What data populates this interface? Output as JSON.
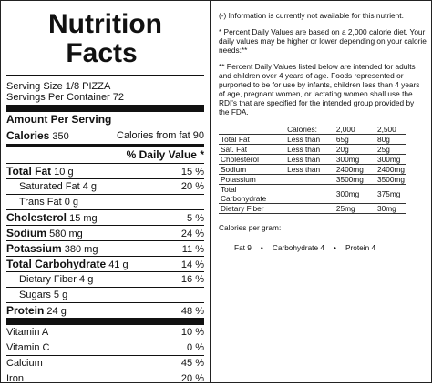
{
  "label": {
    "title_line1": "Nutrition",
    "title_line2": "Facts",
    "serving_size": "Serving Size 1/8 PIZZA",
    "servings_per_container": "Servings Per Container 72",
    "amount_per_serving": "Amount Per Serving",
    "calories_label": "Calories",
    "calories_value": "350",
    "calories_fat": "Calories from fat 90",
    "daily_value_header": "% Daily Value *",
    "nutrients": [
      {
        "name": "Total Fat",
        "amount": "10 g",
        "dv": "15 %"
      },
      {
        "name": "Saturated Fat",
        "amount": "4 g",
        "dv": "20 %"
      },
      {
        "name": "Trans Fat",
        "amount": "0 g",
        "dv": ""
      },
      {
        "name": "Cholesterol",
        "amount": "15 mg",
        "dv": "5 %"
      },
      {
        "name": "Sodium",
        "amount": "580 mg",
        "dv": "24 %"
      },
      {
        "name": "Potassium",
        "amount": "380 mg",
        "dv": "11 %"
      },
      {
        "name": "Total Carbohydrate",
        "amount": "41 g",
        "dv": "14 %"
      },
      {
        "name": "Dietary Fiber",
        "amount": "4 g",
        "dv": "16 %"
      },
      {
        "name": "Sugars",
        "amount": "5 g",
        "dv": ""
      },
      {
        "name": "Protein",
        "amount": "24 g",
        "dv": "48 %"
      }
    ],
    "vitamins": [
      {
        "name": "Vitamin A",
        "dv": "10 %"
      },
      {
        "name": "Vitamin C",
        "dv": "0 %"
      },
      {
        "name": "Calcium",
        "dv": "45 %"
      },
      {
        "name": "Iron",
        "dv": "20 %"
      }
    ]
  },
  "notes": {
    "unavailable": "(-) Information is currently not available for this nutrient.",
    "footnote1": "* Percent Daily Values are based on a 2,000 calorie diet. Your daily values may be higher or lower depending on your calorie needs:**",
    "footnote2": "** Percent Daily Values listed below are intended for adults and children over 4 years of age. Foods represented or purported to be for use by infants, children less than 4 years of age, pregnant women, or lactating women shall use the RDI's that are specified for the intended group provided by the FDA.",
    "table_header": [
      "",
      "Calories:",
      "2,000",
      "2,500"
    ],
    "table_rows": [
      [
        "Total Fat",
        "Less than",
        "65g",
        "80g"
      ],
      [
        "Sat. Fat",
        "Less than",
        "20g",
        "25g"
      ],
      [
        "Cholesterol",
        "Less than",
        "300mg",
        "300mg"
      ],
      [
        "Sodium",
        "Less than",
        "2400mg",
        "2400mg"
      ],
      [
        "Potassium",
        "",
        "3500mg",
        "3500mg"
      ],
      [
        "Total Carbohydrate",
        "",
        "300mg",
        "375mg"
      ],
      [
        "Dietary Fiber",
        "",
        "25mg",
        "30mg"
      ]
    ],
    "calories_per_gram": "Calories per gram:",
    "cpg_fat": "Fat 9",
    "cpg_carb": "Carbohydrate 4",
    "cpg_protein": "Protein 4",
    "bullet": "•"
  }
}
